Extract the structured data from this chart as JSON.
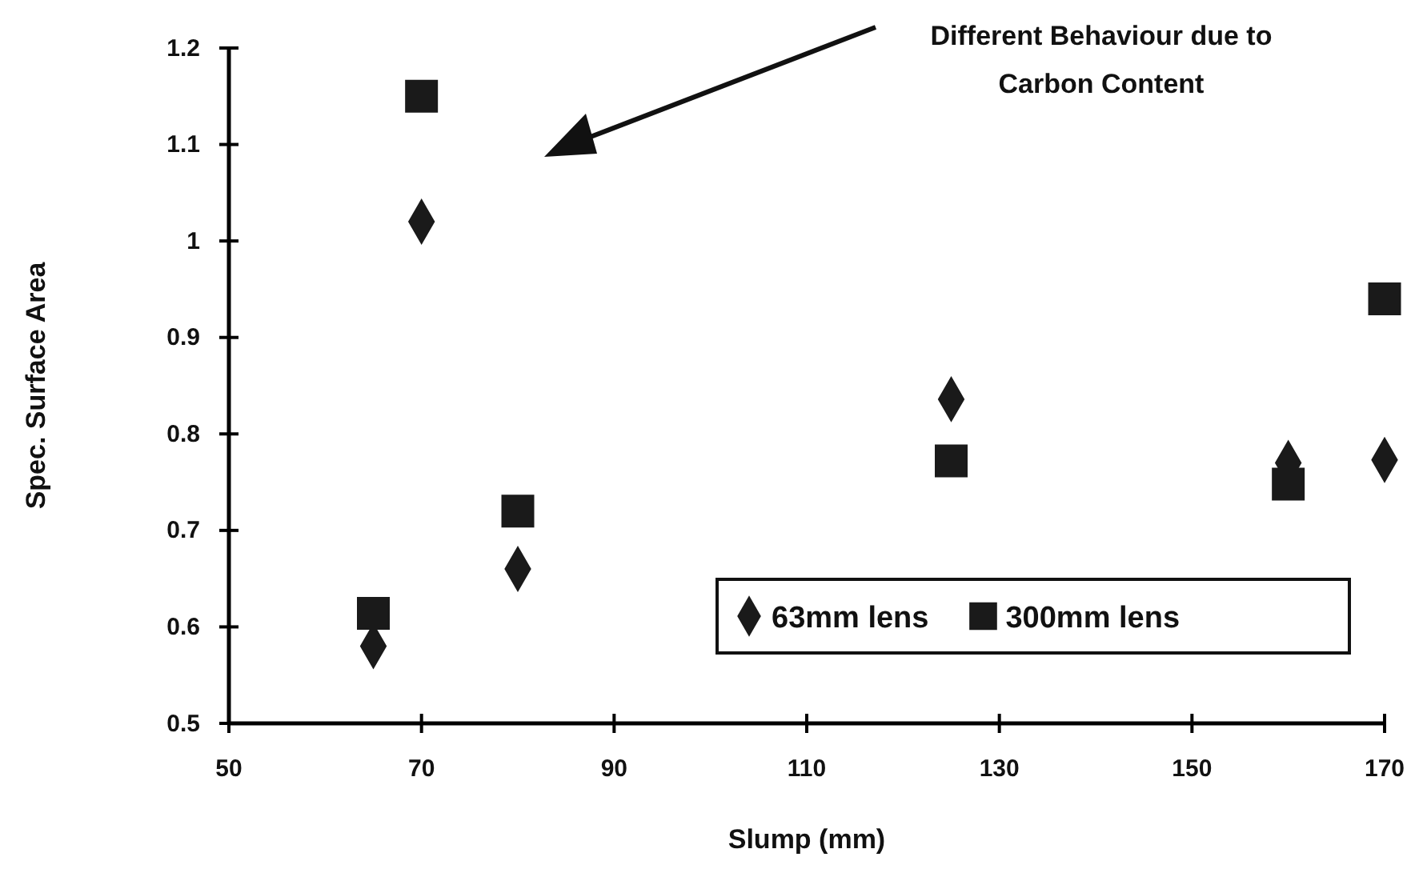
{
  "chart_data": {
    "type": "scatter",
    "xlabel": "Slump (mm)",
    "ylabel": "Spec. Surface Area",
    "x": [
      65,
      70,
      80,
      125,
      160,
      170
    ],
    "series": [
      {
        "name": "63mm lens",
        "color": "#1a1a1a",
        "marker": "diamond",
        "values": [
          0.58,
          1.02,
          0.66,
          0.836,
          0.77,
          0.773
        ]
      },
      {
        "name": "300mm lens",
        "color": "#1a1a1a",
        "marker": "square",
        "values": [
          0.614,
          1.15,
          0.72,
          0.772,
          0.748,
          0.94
        ]
      }
    ],
    "xlim": [
      50,
      170
    ],
    "xticks": [
      50,
      70,
      90,
      110,
      130,
      150,
      170
    ],
    "ylim": [
      0.5,
      1.2
    ],
    "yticks": [
      {
        "value": 0.5,
        "label": "0.5"
      },
      {
        "value": 0.6,
        "label": "0.6"
      },
      {
        "value": 0.7,
        "label": "0.7"
      },
      {
        "value": 0.8,
        "label": "0.8"
      },
      {
        "value": 0.9,
        "label": "0.9"
      },
      1,
      {
        "value": 1.1,
        "label": "1.1"
      },
      {
        "value": 1.2,
        "label": "1.2"
      }
    ],
    "annotations": [
      "Different Behaviour due to\nCarbon Content"
    ],
    "grid": false,
    "legend": "bottom right"
  }
}
